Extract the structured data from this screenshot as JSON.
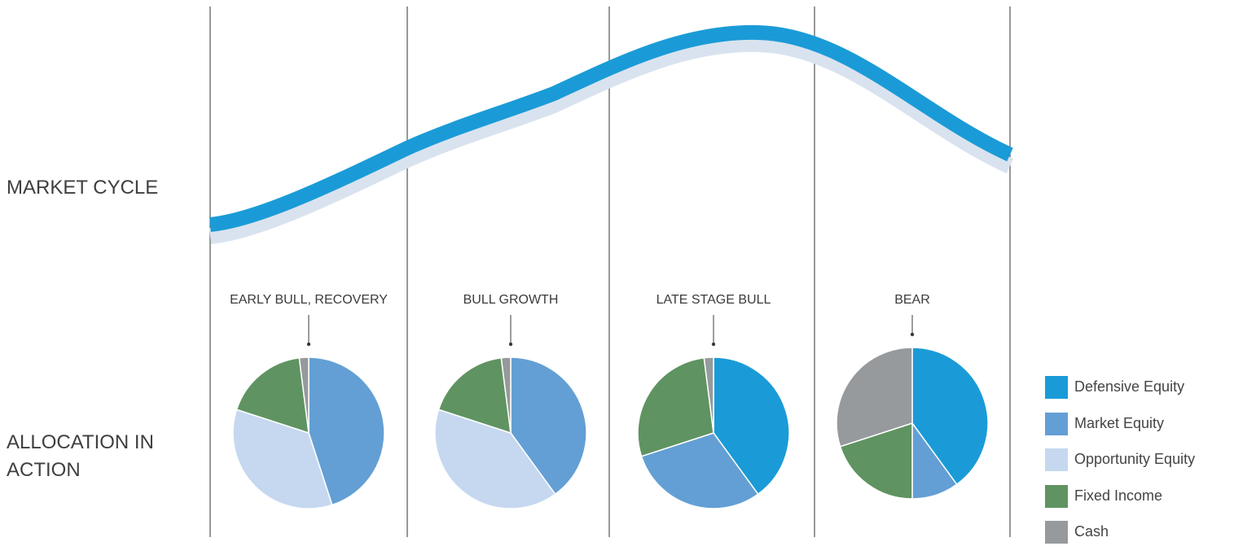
{
  "row_labels": {
    "market_cycle": "MARKET CYCLE",
    "allocation": "ALLOCATION IN ACTION"
  },
  "colors": {
    "curve": "#1a9bd7",
    "curve_shadow": "#d9e3ef",
    "divider": "#555555",
    "Defensive Equity": "#1a9bd7",
    "Market Equity": "#639fd4",
    "Opportunity Equity": "#c5d8ef",
    "Fixed Income": "#5f9361",
    "Cash": "#969a9d"
  },
  "chart_data": {
    "type": "pie",
    "title": "",
    "series_names": [
      "Defensive Equity",
      "Market Equity",
      "Opportunity Equity",
      "Fixed Income",
      "Cash"
    ],
    "pies": [
      {
        "label": "EARLY BULL, RECOVERY",
        "values": {
          "Defensive Equity": 0,
          "Market Equity": 45,
          "Opportunity Equity": 35,
          "Fixed Income": 18,
          "Cash": 2
        }
      },
      {
        "label": "BULL GROWTH",
        "values": {
          "Defensive Equity": 0,
          "Market Equity": 40,
          "Opportunity Equity": 40,
          "Fixed Income": 18,
          "Cash": 2
        }
      },
      {
        "label": "LATE STAGE BULL",
        "values": {
          "Defensive Equity": 40,
          "Market Equity": 30,
          "Opportunity Equity": 0,
          "Fixed Income": 28,
          "Cash": 2
        }
      },
      {
        "label": "BEAR",
        "values": {
          "Defensive Equity": 40,
          "Market Equity": 10,
          "Opportunity Equity": 0,
          "Fixed Income": 20,
          "Cash": 30
        }
      }
    ],
    "legend": [
      "Defensive Equity",
      "Market Equity",
      "Opportunity Equity",
      "Fixed Income",
      "Cash"
    ],
    "legend_position": "bottom-right"
  }
}
